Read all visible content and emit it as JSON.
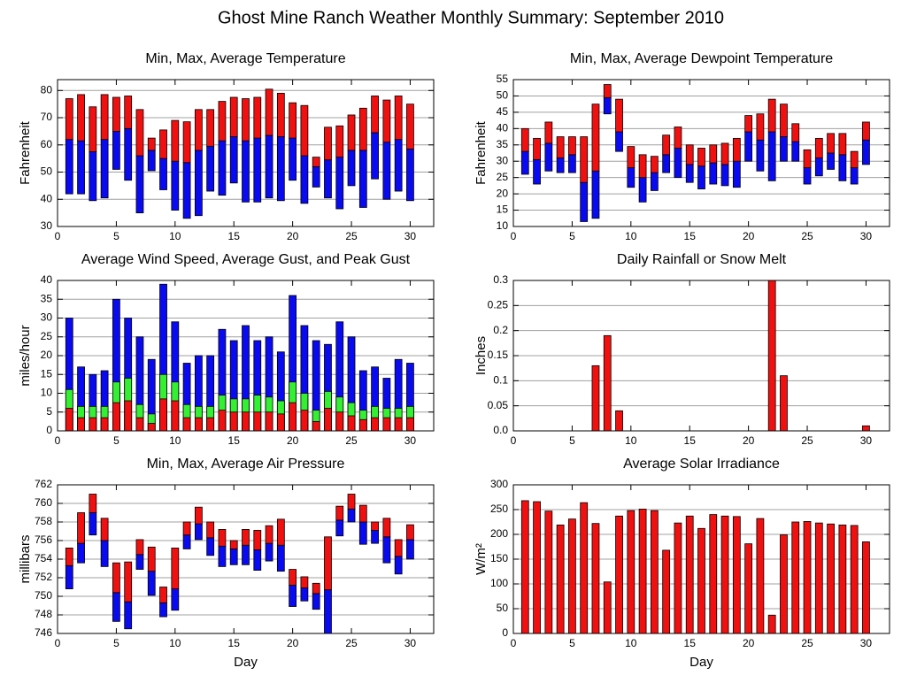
{
  "title": "Ghost Mine Ranch Weather Monthly Summary: September 2010",
  "chart_data": [
    {
      "type": "range-bar",
      "title": "Min, Max, Average Temperature",
      "ylabel": "Fahrenheit",
      "x": [
        1,
        2,
        3,
        4,
        5,
        6,
        7,
        8,
        9,
        10,
        11,
        12,
        13,
        14,
        15,
        16,
        17,
        18,
        19,
        20,
        21,
        22,
        23,
        24,
        25,
        26,
        27,
        28,
        29,
        30
      ],
      "min": [
        42,
        42,
        39.5,
        40.5,
        51,
        47,
        35,
        50.5,
        43.5,
        36,
        33,
        34,
        43,
        41.5,
        46,
        39,
        39,
        40.5,
        39.5,
        47,
        38.5,
        44.5,
        40.5,
        36.5,
        45,
        37,
        47.5,
        40,
        43,
        39.5
      ],
      "avg": [
        62,
        61.5,
        57.5,
        62,
        65,
        66,
        56,
        58,
        55,
        54,
        53.5,
        58,
        59.5,
        61.5,
        63,
        61.5,
        62.5,
        63.5,
        63,
        62.5,
        56,
        52,
        54.5,
        55.5,
        58,
        58,
        64.5,
        61,
        62,
        58.5
      ],
      "max": [
        77,
        78.5,
        74,
        78.5,
        77.5,
        78,
        73,
        62.5,
        65.5,
        69,
        68.5,
        73,
        73,
        76,
        77.5,
        77,
        77.5,
        80.5,
        79,
        75.5,
        74.5,
        55.5,
        66.5,
        67,
        71,
        73.5,
        78,
        76.5,
        78,
        75
      ],
      "low_color": "#0a0af0",
      "high_color": "#f01010",
      "xlim": [
        0,
        32
      ],
      "xticks": [
        0,
        5,
        10,
        15,
        20,
        25,
        30
      ],
      "ylim": [
        30,
        84
      ],
      "yticks": [
        30,
        40,
        50,
        60,
        70,
        80
      ],
      "grid": true
    },
    {
      "type": "range-bar",
      "title": "Min, Max, Average Dewpoint Temperature",
      "ylabel": "Fahrenheit",
      "x": [
        1,
        2,
        3,
        4,
        5,
        6,
        7,
        8,
        9,
        10,
        11,
        12,
        13,
        14,
        15,
        16,
        17,
        18,
        19,
        20,
        21,
        22,
        23,
        24,
        25,
        26,
        27,
        28,
        29,
        30
      ],
      "min": [
        26,
        23,
        27,
        26.5,
        26.5,
        11.5,
        12.5,
        44.5,
        33,
        22,
        17.5,
        21,
        26.5,
        25,
        23.5,
        21.5,
        23,
        22.5,
        22,
        30,
        27,
        24,
        30,
        30,
        23,
        25.5,
        27.5,
        24,
        23,
        29
      ],
      "avg": [
        33,
        30.5,
        35.5,
        31,
        32,
        23.5,
        27,
        49.5,
        39,
        28,
        25,
        26.5,
        32,
        34,
        29,
        28.5,
        29.5,
        29,
        30,
        39,
        36.5,
        39,
        37.5,
        36,
        28,
        31,
        32.5,
        32,
        28,
        36.5
      ],
      "max": [
        40,
        37,
        42,
        37.5,
        37.5,
        37.5,
        47.5,
        53.5,
        49,
        34.5,
        32,
        31.5,
        38,
        40.5,
        35,
        34,
        35,
        35.5,
        37,
        44,
        44.5,
        49,
        47.5,
        41.5,
        33.5,
        37,
        38.5,
        38.5,
        33,
        42
      ],
      "low_color": "#0a0af0",
      "high_color": "#f01010",
      "xlim": [
        0,
        32
      ],
      "xticks": [
        0,
        5,
        10,
        15,
        20,
        25,
        30
      ],
      "ylim": [
        10,
        55
      ],
      "yticks": [
        10,
        15,
        20,
        25,
        30,
        35,
        40,
        45,
        50,
        55
      ],
      "grid": true
    },
    {
      "type": "overlap-bar",
      "title": "Average Wind Speed, Average Gust, and Peak Gust",
      "ylabel": "miles/hour",
      "x": [
        1,
        2,
        3,
        4,
        5,
        6,
        7,
        8,
        9,
        10,
        11,
        12,
        13,
        14,
        15,
        16,
        17,
        18,
        19,
        20,
        21,
        22,
        23,
        24,
        25,
        26,
        27,
        28,
        29,
        30
      ],
      "series": [
        {
          "color": "#0a0af0",
          "values": [
            30,
            17,
            15,
            16,
            35,
            30,
            25,
            19,
            39,
            29,
            18,
            20,
            20,
            27,
            24,
            28,
            24,
            25,
            21,
            36,
            28,
            24,
            23,
            29,
            25,
            16,
            17,
            14,
            19,
            18
          ]
        },
        {
          "color": "#33f033",
          "values": [
            11,
            6.5,
            6.5,
            6.5,
            13,
            14,
            7,
            4.5,
            15,
            13,
            7,
            6.5,
            6.5,
            9.5,
            8.5,
            8.5,
            9.5,
            9,
            8,
            13,
            10,
            5.5,
            10.5,
            9,
            7.5,
            5.5,
            6.5,
            6,
            6,
            6.5
          ]
        },
        {
          "color": "#f01010",
          "values": [
            6,
            3.5,
            3.5,
            3.5,
            7.5,
            8,
            3.5,
            2,
            8.5,
            8,
            3.5,
            3.5,
            3.5,
            5.5,
            5,
            5,
            5,
            5,
            4.5,
            7.5,
            5.5,
            2.5,
            6,
            5,
            4,
            3,
            3.5,
            3.5,
            3.5,
            3.5
          ]
        }
      ],
      "xlim": [
        0,
        32
      ],
      "xticks": [
        0,
        5,
        10,
        15,
        20,
        25,
        30
      ],
      "ylim": [
        0,
        40
      ],
      "yticks": [
        0,
        5,
        10,
        15,
        20,
        25,
        30,
        35,
        40
      ],
      "grid": true
    },
    {
      "type": "bar",
      "title": "Daily Rainfall or Snow Melt",
      "ylabel": "Inches",
      "x": [
        1,
        2,
        3,
        4,
        5,
        6,
        7,
        8,
        9,
        10,
        11,
        12,
        13,
        14,
        15,
        16,
        17,
        18,
        19,
        20,
        21,
        22,
        23,
        24,
        25,
        26,
        27,
        28,
        29,
        30
      ],
      "values": [
        0,
        0,
        0,
        0,
        0,
        0,
        0.13,
        0.19,
        0.04,
        0,
        0,
        0,
        0,
        0,
        0,
        0,
        0,
        0,
        0,
        0,
        0,
        0.3,
        0.11,
        0,
        0,
        0,
        0,
        0,
        0,
        0.01
      ],
      "color": "#f01010",
      "xlim": [
        0,
        32
      ],
      "xticks": [
        0,
        5,
        10,
        15,
        20,
        25,
        30
      ],
      "ylim": [
        0,
        0.3
      ],
      "yticks": [
        {
          "value": 0,
          "label": "0.0"
        },
        0.05,
        0.1,
        0.15,
        0.2,
        0.25,
        0.3
      ],
      "grid": true
    },
    {
      "type": "range-bar",
      "title": "Min, Max, Average Air Pressure",
      "ylabel": "millibars",
      "xlabel": "Day",
      "x": [
        1,
        2,
        3,
        4,
        5,
        6,
        7,
        8,
        9,
        10,
        11,
        12,
        13,
        14,
        15,
        16,
        17,
        18,
        19,
        20,
        21,
        22,
        23,
        24,
        25,
        26,
        27,
        28,
        29,
        30
      ],
      "min": [
        750.8,
        753.6,
        756.6,
        753.2,
        747.3,
        746.5,
        752.9,
        750.1,
        747.8,
        748.5,
        755.1,
        756.1,
        754.4,
        753.2,
        753.4,
        753.4,
        752.8,
        753.8,
        752.7,
        748.9,
        749.5,
        748.6,
        746,
        756.5,
        758,
        755.6,
        755.7,
        753.6,
        752.4,
        754
      ],
      "avg": [
        753.3,
        755.7,
        759,
        756,
        750.4,
        749.4,
        754.5,
        752.7,
        749.3,
        750.8,
        756.6,
        757.8,
        756.3,
        755.4,
        755.1,
        755.5,
        755,
        755.7,
        755.5,
        751.2,
        750.9,
        750.3,
        750.7,
        758.2,
        759.4,
        758,
        757.1,
        756.4,
        754.3,
        756.1
      ],
      "max": [
        755.2,
        759,
        761,
        758.4,
        753.6,
        753.7,
        756.1,
        755.3,
        751,
        755.2,
        758,
        759.6,
        758,
        757.2,
        756,
        757.2,
        757.1,
        757.6,
        758.3,
        752.9,
        752.1,
        751.4,
        756.4,
        759.7,
        761,
        759.8,
        758,
        758.4,
        756.1,
        757.7
      ],
      "low_color": "#0a0af0",
      "high_color": "#f01010",
      "xlim": [
        0,
        32
      ],
      "xticks": [
        0,
        5,
        10,
        15,
        20,
        25,
        30
      ],
      "ylim": [
        746,
        762
      ],
      "yticks": [
        746,
        748,
        750,
        752,
        754,
        756,
        758,
        760,
        762
      ],
      "grid": true
    },
    {
      "type": "bar",
      "title": "Average Solar Irradiance",
      "ylabel": "W/m²",
      "xlabel": "Day",
      "x": [
        1,
        2,
        3,
        4,
        5,
        6,
        7,
        8,
        9,
        10,
        11,
        12,
        13,
        14,
        15,
        16,
        17,
        18,
        19,
        20,
        21,
        22,
        23,
        24,
        25,
        26,
        27,
        28,
        29,
        30
      ],
      "values": [
        268,
        266,
        247,
        219,
        231,
        264,
        222,
        104,
        237,
        248,
        251,
        248,
        168,
        223,
        237,
        212,
        240,
        237,
        236,
        181,
        232,
        37,
        199,
        225,
        226,
        223,
        221,
        219,
        218,
        185
      ],
      "color": "#f01010",
      "xlim": [
        0,
        32
      ],
      "xticks": [
        0,
        5,
        10,
        15,
        20,
        25,
        30
      ],
      "ylim": [
        0,
        300
      ],
      "yticks": [
        0,
        50,
        100,
        150,
        200,
        250,
        300
      ],
      "grid": true
    }
  ]
}
